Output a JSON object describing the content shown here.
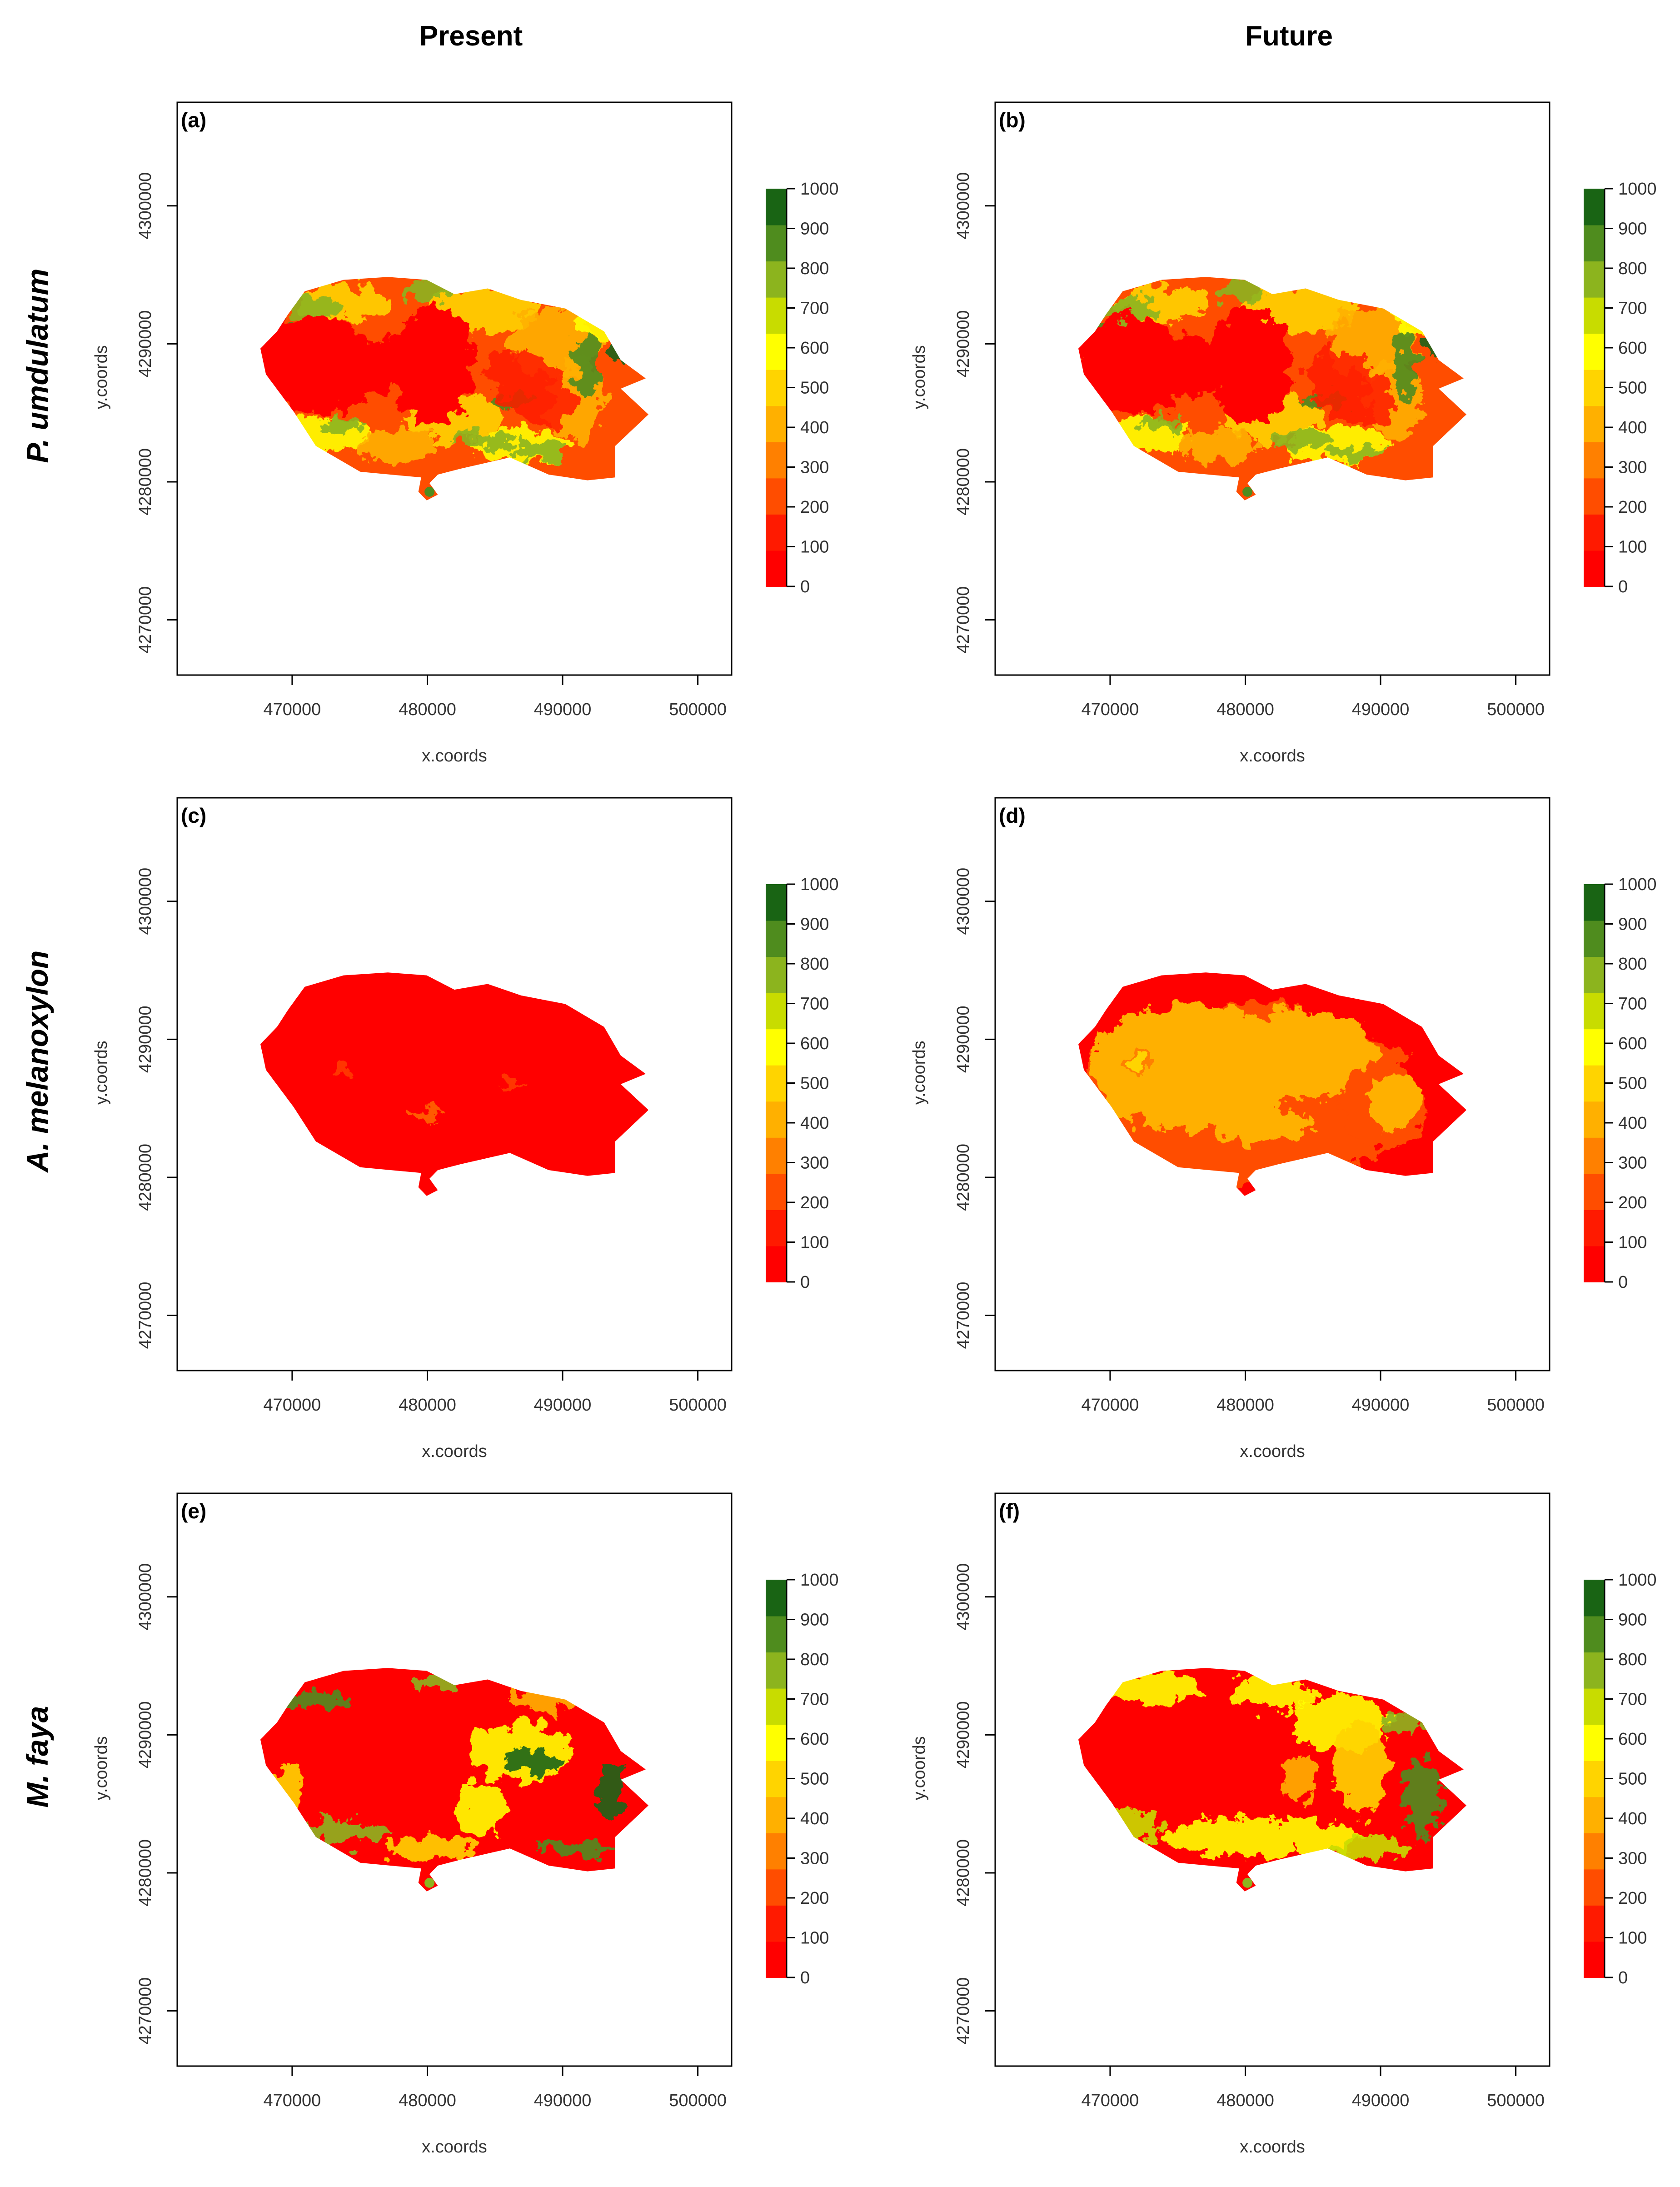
{
  "columns": [
    "Present",
    "Future"
  ],
  "rows": [
    {
      "species": "P. umdulatum",
      "panels": [
        {
          "label": "(a)",
          "pattern": "pu"
        },
        {
          "label": "(b)",
          "pattern": "pu"
        }
      ]
    },
    {
      "species": "A. melanoxylon",
      "panels": [
        {
          "label": "(c)",
          "pattern": "am_present"
        },
        {
          "label": "(d)",
          "pattern": "am_future"
        }
      ]
    },
    {
      "species": "M. faya",
      "panels": [
        {
          "label": "(e)",
          "pattern": "mf_present"
        },
        {
          "label": "(f)",
          "pattern": "mf_future"
        }
      ]
    }
  ],
  "axes": {
    "xlabel": "x.coords",
    "ylabel": "y.coords",
    "xticks": [
      470000,
      480000,
      490000,
      500000
    ],
    "yticks": [
      4270000,
      4280000,
      4290000,
      4300000
    ],
    "xrange": [
      461500,
      502500
    ],
    "yrange": [
      4266000,
      4307500
    ]
  },
  "legend": {
    "ticks": [
      0,
      100,
      200,
      300,
      400,
      500,
      600,
      700,
      800,
      900,
      1000
    ],
    "colors": [
      "#ff0000",
      "#ff1a00",
      "#ff4d00",
      "#ff8000",
      "#ffb000",
      "#ffd400",
      "#ffff00",
      "#c8dc00",
      "#8cb41e",
      "#4f8c1e",
      "#196414"
    ]
  },
  "colors": {
    "text": "#000000",
    "axis": "#000000",
    "tick_text": "#333333"
  }
}
